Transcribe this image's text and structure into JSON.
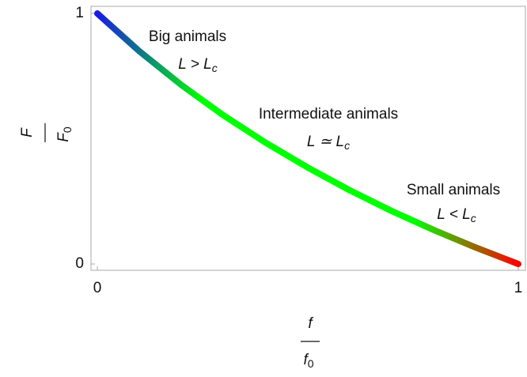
{
  "chart_data": {
    "type": "line",
    "x": [
      0,
      0.1,
      0.2,
      0.3,
      0.4,
      0.5,
      0.6,
      0.7,
      0.8,
      0.9,
      1
    ],
    "series": [
      {
        "values": [
          1,
          0.849,
          0.714,
          0.593,
          0.484,
          0.385,
          0.294,
          0.211,
          0.135,
          0.065,
          0
        ],
        "colors": [
          "#1a1ae6",
          "#00ff00",
          "#00ff00",
          "#00ff00",
          "#ff0000"
        ]
      }
    ],
    "xlim": [
      0,
      1
    ],
    "ylim": [
      0,
      1
    ],
    "xticks": [
      0,
      1
    ],
    "yticks": [
      0,
      1
    ],
    "x_label": {
      "numerator": "f",
      "denominator": "f",
      "denominator_subscript": "0"
    },
    "y_label": {
      "numerator": "F",
      "denominator": "F",
      "denominator_subscript": "0"
    },
    "annotations": [
      {
        "label": "Big animals",
        "formula": "L > L",
        "subscript": "c"
      },
      {
        "label": "Intermediate animals",
        "formula": "L ≃ L",
        "subscript": "c"
      },
      {
        "label": "Small animals",
        "formula": "L < L",
        "subscript": "c"
      }
    ]
  }
}
